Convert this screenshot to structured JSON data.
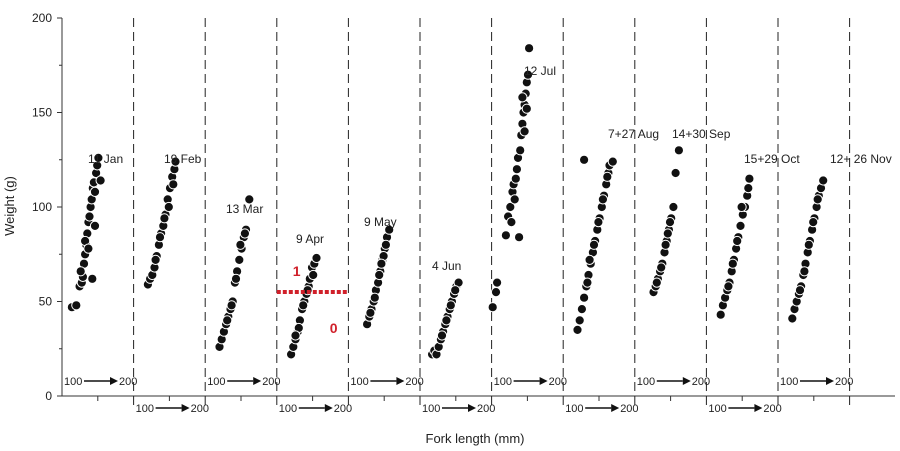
{
  "chart_data": {
    "type": "scatter",
    "xlabel": "Fork length (mm)",
    "ylabel": "Weight (g)",
    "ylim": [
      0,
      200
    ],
    "yticks": [
      "0",
      "50",
      "100",
      "150",
      "200"
    ],
    "range_label_start": "100",
    "range_label_end": "200",
    "threshold": {
      "y": 55,
      "label_above": "1",
      "label_below": "0",
      "color": "#d0202a"
    },
    "panels": [
      {
        "label": "11 Jan",
        "points": [
          [
            88,
            47
          ],
          [
            96,
            48
          ],
          [
            102,
            58
          ],
          [
            106,
            60
          ],
          [
            108,
            63
          ],
          [
            110,
            70
          ],
          [
            112,
            75
          ],
          [
            114,
            80
          ],
          [
            116,
            86
          ],
          [
            118,
            92
          ],
          [
            122,
            100
          ],
          [
            126,
            110
          ],
          [
            128,
            113
          ],
          [
            132,
            118
          ],
          [
            134,
            122
          ],
          [
            136,
            126
          ],
          [
            120,
            95
          ],
          [
            124,
            104
          ],
          [
            130,
            108
          ],
          [
            104,
            66
          ],
          [
            112,
            82
          ],
          [
            118,
            78
          ],
          [
            130,
            90
          ],
          [
            125,
            62
          ],
          [
            140,
            114
          ]
        ]
      },
      {
        "label": "19 Feb",
        "points": [
          [
            96,
            59
          ],
          [
            100,
            62
          ],
          [
            104,
            64
          ],
          [
            108,
            68
          ],
          [
            112,
            74
          ],
          [
            116,
            80
          ],
          [
            120,
            86
          ],
          [
            124,
            90
          ],
          [
            128,
            96
          ],
          [
            132,
            104
          ],
          [
            136,
            110
          ],
          [
            140,
            116
          ],
          [
            144,
            120
          ],
          [
            146,
            124
          ],
          [
            118,
            84
          ],
          [
            126,
            94
          ],
          [
            134,
            100
          ],
          [
            110,
            72
          ],
          [
            142,
            112
          ]
        ]
      },
      {
        "label": "13 Mar",
        "points": [
          [
            96,
            26
          ],
          [
            100,
            30
          ],
          [
            104,
            34
          ],
          [
            108,
            38
          ],
          [
            112,
            42
          ],
          [
            116,
            46
          ],
          [
            120,
            50
          ],
          [
            124,
            60
          ],
          [
            128,
            66
          ],
          [
            132,
            72
          ],
          [
            136,
            78
          ],
          [
            140,
            84
          ],
          [
            144,
            88
          ],
          [
            150,
            104
          ],
          [
            110,
            40
          ],
          [
            118,
            48
          ],
          [
            126,
            62
          ],
          [
            134,
            80
          ],
          [
            142,
            86
          ]
        ]
      },
      {
        "label": "9 Apr",
        "points": [
          [
            96,
            22
          ],
          [
            100,
            26
          ],
          [
            104,
            30
          ],
          [
            108,
            34
          ],
          [
            112,
            40
          ],
          [
            116,
            46
          ],
          [
            120,
            50
          ],
          [
            124,
            54
          ],
          [
            128,
            58
          ],
          [
            130,
            62
          ],
          [
            134,
            68
          ],
          [
            138,
            70
          ],
          [
            142,
            73
          ],
          [
            110,
            36
          ],
          [
            118,
            48
          ],
          [
            126,
            56
          ],
          [
            104,
            32
          ],
          [
            136,
            64
          ]
        ]
      },
      {
        "label": "9 May",
        "points": [
          [
            104,
            38
          ],
          [
            108,
            42
          ],
          [
            112,
            46
          ],
          [
            116,
            50
          ],
          [
            120,
            56
          ],
          [
            124,
            60
          ],
          [
            128,
            66
          ],
          [
            132,
            72
          ],
          [
            136,
            78
          ],
          [
            140,
            84
          ],
          [
            144,
            88
          ],
          [
            118,
            52
          ],
          [
            126,
            64
          ],
          [
            134,
            74
          ],
          [
            110,
            44
          ],
          [
            130,
            70
          ],
          [
            138,
            80
          ]
        ]
      },
      {
        "label": "4 Jun",
        "points": [
          [
            92,
            22
          ],
          [
            96,
            24
          ],
          [
            100,
            22
          ],
          [
            104,
            26
          ],
          [
            108,
            30
          ],
          [
            112,
            34
          ],
          [
            116,
            38
          ],
          [
            120,
            42
          ],
          [
            124,
            46
          ],
          [
            128,
            50
          ],
          [
            132,
            54
          ],
          [
            136,
            58
          ],
          [
            140,
            60
          ],
          [
            118,
            40
          ],
          [
            126,
            48
          ],
          [
            110,
            32
          ],
          [
            134,
            56
          ]
        ]
      },
      {
        "label": "12 Jul",
        "points": [
          [
            72,
            47
          ],
          [
            78,
            55
          ],
          [
            80,
            60
          ],
          [
            96,
            85
          ],
          [
            100,
            95
          ],
          [
            104,
            100
          ],
          [
            108,
            108
          ],
          [
            110,
            112
          ],
          [
            114,
            115
          ],
          [
            116,
            120
          ],
          [
            118,
            126
          ],
          [
            122,
            130
          ],
          [
            124,
            138
          ],
          [
            126,
            144
          ],
          [
            128,
            150
          ],
          [
            130,
            154
          ],
          [
            132,
            160
          ],
          [
            134,
            166
          ],
          [
            136,
            170
          ],
          [
            138,
            184
          ],
          [
            120,
            84
          ],
          [
            112,
            104
          ],
          [
            106,
            92
          ],
          [
            130,
            140
          ],
          [
            126,
            158
          ],
          [
            134,
            152
          ]
        ]
      },
      {
        "label": "7+27 Aug",
        "points": [
          [
            96,
            35
          ],
          [
            100,
            40
          ],
          [
            104,
            46
          ],
          [
            108,
            52
          ],
          [
            112,
            58
          ],
          [
            116,
            64
          ],
          [
            120,
            70
          ],
          [
            124,
            76
          ],
          [
            128,
            82
          ],
          [
            132,
            88
          ],
          [
            136,
            94
          ],
          [
            140,
            100
          ],
          [
            144,
            106
          ],
          [
            148,
            112
          ],
          [
            152,
            118
          ],
          [
            154,
            122
          ],
          [
            160,
            124
          ],
          [
            108,
            125
          ],
          [
            118,
            72
          ],
          [
            126,
            80
          ],
          [
            134,
            92
          ],
          [
            142,
            104
          ],
          [
            150,
            116
          ],
          [
            114,
            60
          ]
        ]
      },
      {
        "label": "14+30 Sep",
        "points": [
          [
            104,
            55
          ],
          [
            108,
            58
          ],
          [
            112,
            62
          ],
          [
            116,
            66
          ],
          [
            120,
            70
          ],
          [
            124,
            76
          ],
          [
            128,
            82
          ],
          [
            132,
            88
          ],
          [
            136,
            94
          ],
          [
            140,
            100
          ],
          [
            144,
            118
          ],
          [
            150,
            130
          ],
          [
            118,
            68
          ],
          [
            126,
            80
          ],
          [
            134,
            92
          ],
          [
            110,
            60
          ],
          [
            130,
            86
          ]
        ]
      },
      {
        "label": "15+29 Oct",
        "points": [
          [
            96,
            43
          ],
          [
            100,
            48
          ],
          [
            104,
            52
          ],
          [
            108,
            56
          ],
          [
            112,
            60
          ],
          [
            116,
            66
          ],
          [
            120,
            72
          ],
          [
            124,
            78
          ],
          [
            128,
            84
          ],
          [
            132,
            90
          ],
          [
            136,
            96
          ],
          [
            140,
            100
          ],
          [
            144,
            106
          ],
          [
            146,
            110
          ],
          [
            148,
            115
          ],
          [
            134,
            100
          ],
          [
            118,
            70
          ],
          [
            126,
            82
          ],
          [
            110,
            58
          ]
        ]
      },
      {
        "label": "12+ 26 Nov",
        "points": [
          [
            96,
            41
          ],
          [
            100,
            46
          ],
          [
            104,
            50
          ],
          [
            108,
            54
          ],
          [
            112,
            58
          ],
          [
            116,
            64
          ],
          [
            120,
            70
          ],
          [
            124,
            76
          ],
          [
            128,
            82
          ],
          [
            132,
            88
          ],
          [
            136,
            94
          ],
          [
            140,
            100
          ],
          [
            144,
            106
          ],
          [
            148,
            110
          ],
          [
            152,
            114
          ],
          [
            118,
            66
          ],
          [
            126,
            80
          ],
          [
            134,
            92
          ],
          [
            110,
            56
          ],
          [
            142,
            104
          ]
        ]
      }
    ]
  }
}
